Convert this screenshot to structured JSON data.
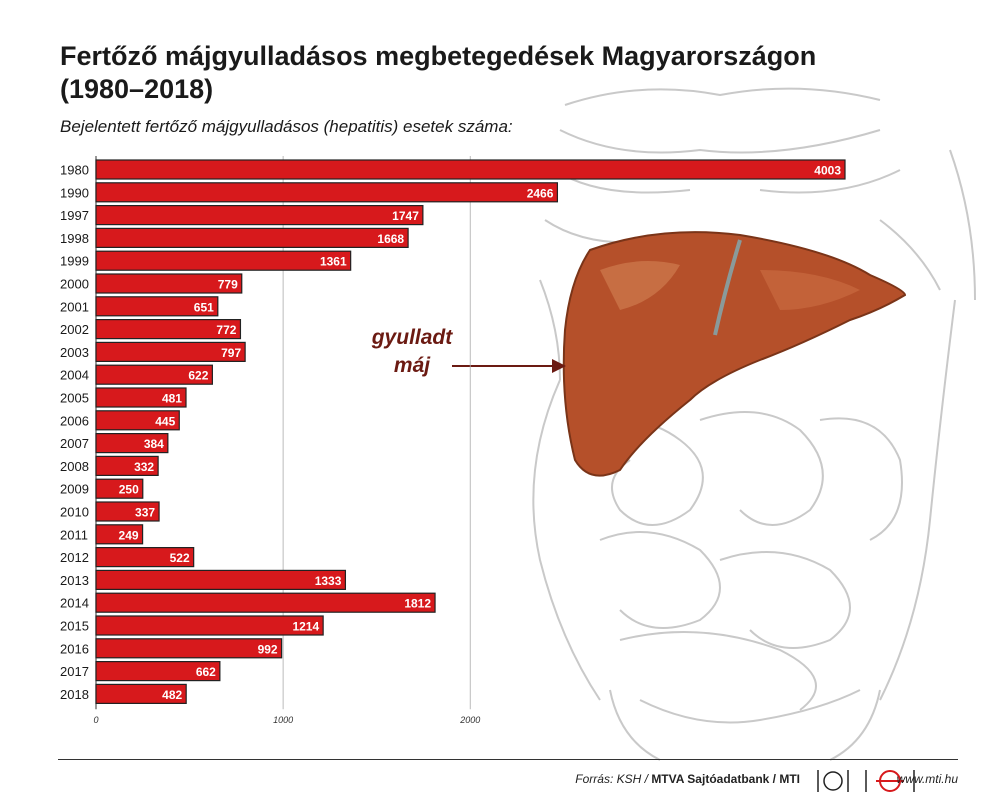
{
  "title": "Fertőző májgyulladásos megbetegedések Magyarországon (1980–2018)",
  "subtitle": "Bejelentett fertőző májgyulladásos (hepatitis) esetek száma:",
  "annotation": {
    "line1": "gyulladt",
    "line2": "máj"
  },
  "footer": {
    "source_prefix": "Forrás: KSH /",
    "source_bold": "MTVA Sajtóadatbank / MTI",
    "url": "www.mti.hu"
  },
  "colors": {
    "bar": "#d7191c",
    "bar_border": "#222222",
    "annotation": "#6b1a12",
    "liver": "#b5502a"
  },
  "icons": [
    "mtva-logo-icon",
    "mti-logo-icon"
  ],
  "chart_data": {
    "type": "bar",
    "orientation": "horizontal",
    "categories": [
      "1980",
      "1990",
      "1997",
      "1998",
      "1999",
      "2000",
      "2001",
      "2002",
      "2003",
      "2004",
      "2005",
      "2006",
      "2007",
      "2008",
      "2009",
      "2010",
      "2011",
      "2012",
      "2013",
      "2014",
      "2015",
      "2016",
      "2017",
      "2018"
    ],
    "values": [
      4003,
      2466,
      1747,
      1668,
      1361,
      779,
      651,
      772,
      797,
      622,
      481,
      445,
      384,
      332,
      250,
      337,
      249,
      522,
      1333,
      1812,
      1214,
      992,
      662,
      482
    ],
    "xlim": [
      0,
      4003
    ],
    "xticks": [
      "0",
      "1000",
      "2000"
    ],
    "grid": true,
    "data_labels": true
  }
}
